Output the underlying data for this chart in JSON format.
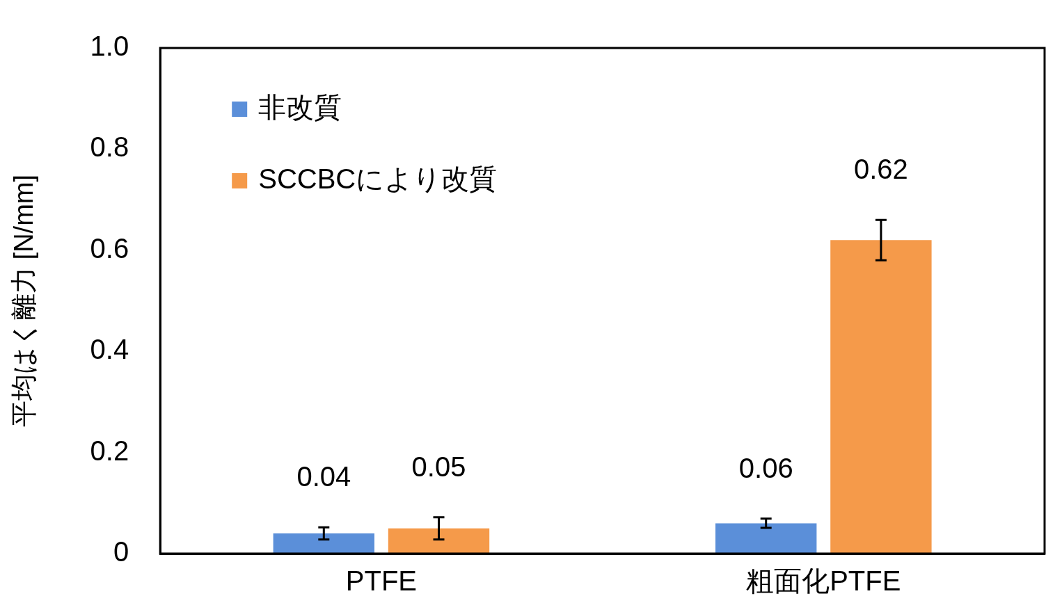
{
  "chart_data": {
    "type": "bar",
    "ylabel": "平均はく離力 [N/mm]",
    "categories": [
      "PTFE",
      "粗面化PTFE"
    ],
    "series": [
      {
        "name": "非改質",
        "color": "#5b8fd9",
        "values": [
          0.04,
          0.06
        ],
        "errors": [
          0.012,
          0.009
        ]
      },
      {
        "name": "SCCBCにより改質",
        "color": "#f59a4a",
        "values": [
          0.05,
          0.62
        ],
        "errors": [
          0.022,
          0.04
        ]
      }
    ],
    "ylim": [
      0,
      1
    ],
    "yticks": [
      0,
      0.2,
      0.4,
      0.6,
      0.8,
      {
        "value": 1,
        "label": "1.0"
      }
    ],
    "grid": false,
    "legend": "top left",
    "data_labels": true
  }
}
